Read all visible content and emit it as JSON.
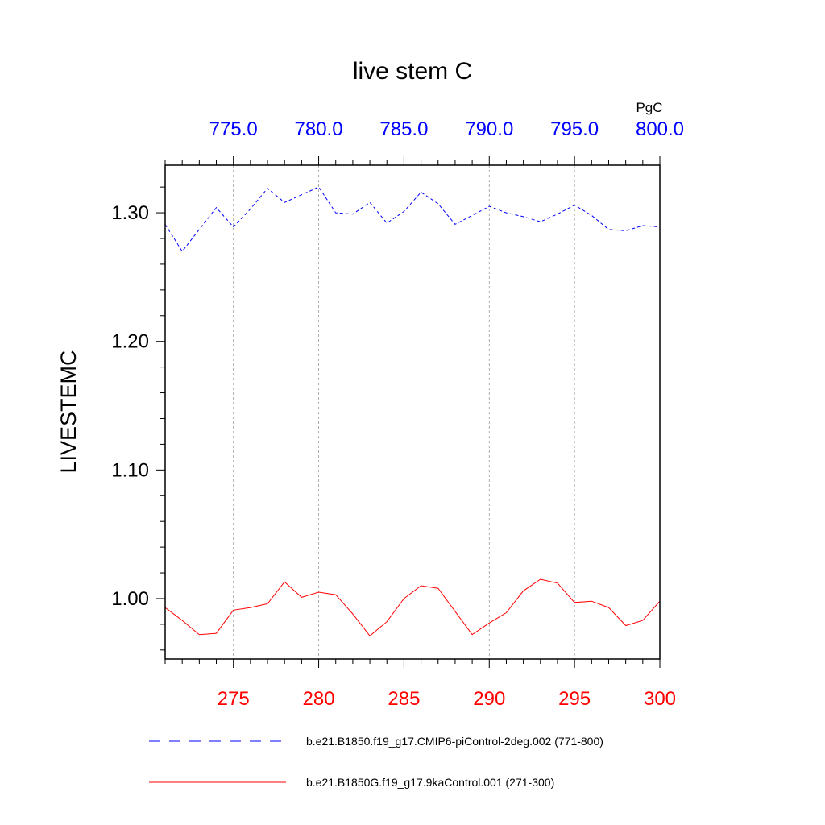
{
  "chart_data": {
    "type": "line",
    "title": "live stem C",
    "ylabel": "LIVESTEMC",
    "units_label": "PgC",
    "ylim": [
      0.953,
      1.337
    ],
    "yticks": [
      1.0,
      1.1,
      1.2,
      1.3
    ],
    "ytick_labels": [
      "1.00",
      "1.10",
      "1.20",
      "1.30"
    ],
    "grid": "vertical dashed lines at major x ticks",
    "bottom_axis": {
      "range": [
        271,
        300
      ],
      "ticks": [
        275,
        280,
        285,
        290,
        295,
        300
      ],
      "tick_labels": [
        "275",
        "280",
        "285",
        "290",
        "295",
        "300"
      ],
      "color": "#ff0000"
    },
    "top_axis": {
      "range": [
        771,
        800
      ],
      "ticks": [
        775,
        780,
        785,
        790,
        795,
        800
      ],
      "tick_labels": [
        "775.0",
        "780.0",
        "785.0",
        "790.0",
        "795.0",
        "800.0"
      ],
      "color": "#0000ff"
    },
    "legend_position": "bottom",
    "series": [
      {
        "name": "b.e21.B1850.f19_g17.CMIP6-piControl-2deg.002 (771-800)",
        "axis": "top",
        "color": "#0000ff",
        "style": "dashed",
        "x": [
          771,
          772,
          773,
          774,
          775,
          776,
          777,
          778,
          779,
          780,
          781,
          782,
          783,
          784,
          785,
          786,
          787,
          788,
          789,
          790,
          791,
          792,
          793,
          794,
          795,
          796,
          797,
          798,
          799,
          800
        ],
        "values": [
          1.291,
          1.27,
          1.287,
          1.304,
          1.289,
          1.303,
          1.319,
          1.308,
          1.314,
          1.32,
          1.3,
          1.299,
          1.308,
          1.292,
          1.301,
          1.316,
          1.307,
          1.291,
          1.298,
          1.305,
          1.3,
          1.297,
          1.293,
          1.299,
          1.306,
          1.298,
          1.287,
          1.286,
          1.29,
          1.289
        ]
      },
      {
        "name": "b.e21.B1850G.f19_g17.9kaControl.001 (271-300)",
        "axis": "bottom",
        "color": "#ff0000",
        "style": "solid",
        "x": [
          271,
          272,
          273,
          274,
          275,
          276,
          277,
          278,
          279,
          280,
          281,
          282,
          283,
          284,
          285,
          286,
          287,
          288,
          289,
          290,
          291,
          292,
          293,
          294,
          295,
          296,
          297,
          298,
          299,
          300
        ],
        "values": [
          0.993,
          0.983,
          0.972,
          0.973,
          0.991,
          0.993,
          0.996,
          1.013,
          1.001,
          1.005,
          1.003,
          0.988,
          0.971,
          0.982,
          1.0,
          1.01,
          1.008,
          0.99,
          0.972,
          0.981,
          0.989,
          1.006,
          1.015,
          1.012,
          0.997,
          0.998,
          0.993,
          0.979,
          0.983,
          0.998
        ]
      }
    ]
  }
}
